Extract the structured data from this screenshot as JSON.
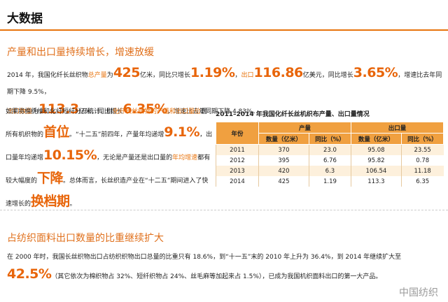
{
  "header": {
    "title": "大数据"
  },
  "section1": {
    "heading": "产量和出口量持续增长，增速放缓",
    "paragraph1": [
      "2014 年，我国化纤长丝织物",
      "总产量",
      "为",
      "425",
      "亿米，同比只增长",
      "1.19%",
      "，",
      "出口",
      "116.86",
      "亿美元，同比增长",
      "3.65%",
      "，增速比去年同期下降 9.5%，",
      "出口数量",
      "为",
      "113.3",
      "亿米，同比增长",
      "6.35%",
      "，增速比去年同期下降 4.83%。"
    ],
    "paragraph2": [
      "如果将棉纤维和化纤短纤分开统计，则",
      "化纤长丝织物的产量和出口量位",
      "居所有机织物的",
      "首位",
      "。“十二五”前四年，产量年均递增",
      "9.1%",
      "，出口量年均递增",
      "10.15%",
      "，无论是产量还是出口量的",
      "年均增速",
      "都有较大幅度的",
      "下降",
      "。总体而言，长丝织造产业在“十二五”期间进入了快速增长的",
      "换档期",
      "。"
    ],
    "table": {
      "title": "2011–2014 年我国化纤长丝机织布产量、出口量情况",
      "header": [
        "年份",
        "产量",
        "出口量"
      ],
      "subheader": [
        "数量（亿米）",
        "同比（%）",
        "数量（亿米）",
        "同比（%）"
      ],
      "rows": [
        [
          "2011",
          "370",
          "23.0",
          "95.08",
          "23.55"
        ],
        [
          "2012",
          "395",
          "6.76",
          "95.82",
          "0.78"
        ],
        [
          "2013",
          "420",
          "6.3",
          "106.54",
          "11.18"
        ],
        [
          "2014",
          "425",
          "1.19",
          "113.3",
          "6.35"
        ]
      ]
    }
  },
  "section2": {
    "heading": "占纺织面料出口数量的比重继续扩大",
    "paragraph": [
      "在 2000 年时，我国长丝织物出口占纺织织物出口总量的比重只有 18.6%，到“十一五”末的 2010 年上升为 36.4%，到 2014 年继续扩大至",
      "42.5%",
      "（其它依次为棉织物占 32%、短纤织物占 24%、丝毛麻等加起来占 1.5%），已成为我国机织面料出口的第一大产品。"
    ]
  },
  "watermark": "中国纺织"
}
